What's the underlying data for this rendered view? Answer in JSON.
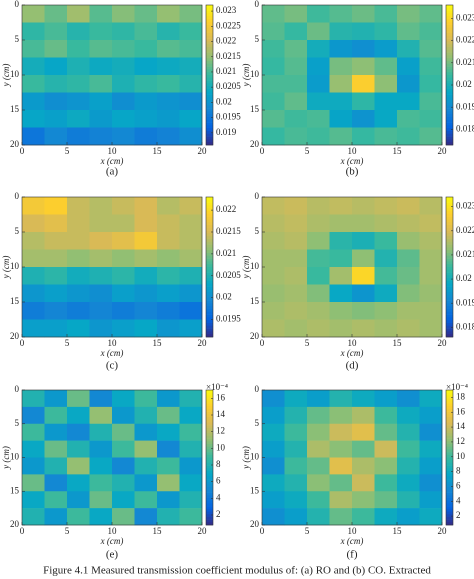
{
  "caption": "Figure 4.1 Measured transmission coefficient modulus of: (a) RO and (b) CO. Extracted",
  "chart_data": [
    {
      "type": "heatmap",
      "label": "(a)",
      "xlabel": "x (cm)",
      "ylabel": "y (cm)",
      "xlim": [
        0,
        20
      ],
      "ylim": [
        20,
        0
      ],
      "xticks": [
        0,
        5,
        10,
        15,
        20
      ],
      "yticks": [
        0,
        5,
        10,
        15,
        20
      ],
      "clim": [
        0.0186,
        0.0232
      ],
      "cticks": [
        0.019,
        0.0195,
        0.02,
        0.0205,
        0.021,
        0.0215,
        0.022,
        0.0225,
        0.023
      ],
      "z": [
        [
          0.0215,
          0.0212,
          0.0216,
          0.0211,
          0.0214,
          0.0212,
          0.0215,
          0.0213
        ],
        [
          0.0208,
          0.021,
          0.0207,
          0.0209,
          0.0208,
          0.021,
          0.0207,
          0.0209
        ],
        [
          0.021,
          0.0212,
          0.0209,
          0.0211,
          0.021,
          0.0209,
          0.0211,
          0.021
        ],
        [
          0.0205,
          0.0203,
          0.0206,
          0.0204,
          0.0205,
          0.0203,
          0.0204,
          0.0205
        ],
        [
          0.0209,
          0.0207,
          0.0208,
          0.021,
          0.0206,
          0.0208,
          0.0209,
          0.0207
        ],
        [
          0.0201,
          0.0199,
          0.02,
          0.0202,
          0.0199,
          0.0201,
          0.02,
          0.0199
        ],
        [
          0.0203,
          0.0202,
          0.0204,
          0.0201,
          0.0203,
          0.0202,
          0.0201,
          0.0203
        ],
        [
          0.0195,
          0.0198,
          0.0196,
          0.0197,
          0.0198,
          0.0196,
          0.0197,
          0.0199
        ]
      ]
    },
    {
      "type": "heatmap",
      "label": "(b)",
      "xlabel": "x (cm)",
      "ylabel": "y (cm)",
      "xlim": [
        0,
        20
      ],
      "ylim": [
        20,
        0
      ],
      "xticks": [
        0,
        5,
        10,
        15,
        20
      ],
      "yticks": [
        0,
        5,
        10,
        15,
        20
      ],
      "clim": [
        0.0173,
        0.0236
      ],
      "cticks": [
        0.018,
        0.019,
        0.02,
        0.021,
        0.022,
        0.023
      ],
      "z": [
        [
          0.0208,
          0.021,
          0.0205,
          0.0207,
          0.0209,
          0.0206,
          0.021,
          0.0208
        ],
        [
          0.0207,
          0.0204,
          0.0209,
          0.0202,
          0.0201,
          0.0203,
          0.0208,
          0.0206
        ],
        [
          0.0205,
          0.0208,
          0.0199,
          0.0193,
          0.0191,
          0.0194,
          0.0201,
          0.0207
        ],
        [
          0.0204,
          0.0207,
          0.0195,
          0.021,
          0.0212,
          0.0208,
          0.0195,
          0.0205
        ],
        [
          0.0206,
          0.0206,
          0.0194,
          0.0213,
          0.0228,
          0.0212,
          0.0193,
          0.0204
        ],
        [
          0.0205,
          0.0208,
          0.0198,
          0.0198,
          0.0203,
          0.0197,
          0.0197,
          0.0206
        ],
        [
          0.0207,
          0.0205,
          0.0206,
          0.0196,
          0.0192,
          0.0197,
          0.0206,
          0.0205
        ],
        [
          0.0204,
          0.0206,
          0.0205,
          0.0207,
          0.0204,
          0.0206,
          0.0205,
          0.0207
        ]
      ]
    },
    {
      "type": "heatmap",
      "label": "(c)",
      "xlabel": "x (cm)",
      "ylabel": "y (cm)",
      "xlim": [
        0,
        20
      ],
      "ylim": [
        20,
        0
      ],
      "xticks": [
        0,
        5,
        10,
        15,
        20
      ],
      "yticks": [
        0,
        5,
        10,
        15,
        20
      ],
      "clim": [
        0.0191,
        0.0223
      ],
      "cticks": [
        0.0195,
        0.02,
        0.0205,
        0.021,
        0.0215,
        0.022
      ],
      "z": [
        [
          0.0218,
          0.0219,
          0.0214,
          0.0213,
          0.0214,
          0.0215,
          0.0213,
          0.0214
        ],
        [
          0.0215,
          0.0216,
          0.0214,
          0.0213,
          0.0213,
          0.0215,
          0.0214,
          0.0213
        ],
        [
          0.0213,
          0.0214,
          0.0214,
          0.0215,
          0.0216,
          0.0218,
          0.0214,
          0.0213
        ],
        [
          0.0212,
          0.0212,
          0.0211,
          0.0212,
          0.0211,
          0.0212,
          0.0211,
          0.0212
        ],
        [
          0.0205,
          0.0206,
          0.0204,
          0.0205,
          0.0206,
          0.0204,
          0.0206,
          0.0205
        ],
        [
          0.0201,
          0.0202,
          0.0201,
          0.02,
          0.0202,
          0.0201,
          0.0202,
          0.0201
        ],
        [
          0.0198,
          0.0199,
          0.0198,
          0.0199,
          0.0198,
          0.0199,
          0.0198,
          0.0197
        ],
        [
          0.0202,
          0.0202,
          0.0203,
          0.0201,
          0.0202,
          0.0203,
          0.0201,
          0.0202
        ]
      ]
    },
    {
      "type": "heatmap",
      "label": "(d)",
      "xlabel": "x (cm)",
      "ylabel": "y (cm)",
      "xlim": [
        0,
        20
      ],
      "ylim": [
        20,
        0
      ],
      "xticks": [
        0,
        5,
        10,
        15,
        20
      ],
      "yticks": [
        0,
        5,
        10,
        15,
        20
      ],
      "clim": [
        0.0176,
        0.0234
      ],
      "cticks": [
        0.018,
        0.019,
        0.02,
        0.021,
        0.022,
        0.023
      ],
      "z": [
        [
          0.0217,
          0.0218,
          0.0216,
          0.0217,
          0.0216,
          0.0217,
          0.0218,
          0.0216
        ],
        [
          0.0216,
          0.0217,
          0.0215,
          0.0214,
          0.0214,
          0.0215,
          0.0216,
          0.0217
        ],
        [
          0.0215,
          0.0216,
          0.0212,
          0.0203,
          0.0201,
          0.0205,
          0.0213,
          0.0215
        ],
        [
          0.0214,
          0.0214,
          0.0206,
          0.0205,
          0.0212,
          0.0202,
          0.0208,
          0.0214
        ],
        [
          0.0214,
          0.0215,
          0.0205,
          0.0214,
          0.0228,
          0.0206,
          0.0209,
          0.0214
        ],
        [
          0.0213,
          0.0214,
          0.0211,
          0.0198,
          0.0194,
          0.0199,
          0.0211,
          0.0213
        ],
        [
          0.0214,
          0.0215,
          0.0214,
          0.0212,
          0.0211,
          0.0212,
          0.0214,
          0.0214
        ],
        [
          0.0215,
          0.0214,
          0.0215,
          0.0214,
          0.0215,
          0.0214,
          0.0215,
          0.0214
        ]
      ]
    },
    {
      "type": "heatmap",
      "label": "(e)",
      "xlabel": "x (cm)",
      "ylabel": "y (cm)",
      "xlim": [
        0,
        20
      ],
      "ylim": [
        20,
        0
      ],
      "xticks": [
        0,
        5,
        10,
        15,
        20
      ],
      "yticks": [
        0,
        5,
        10,
        15,
        20
      ],
      "clim": [
        0.8,
        17
      ],
      "cticks": [
        2,
        4,
        6,
        8,
        10,
        12,
        14,
        16
      ],
      "colorbar_exponent": "×10⁻⁴",
      "z": [
        [
          8,
          6,
          10,
          5,
          7,
          9,
          6,
          8
        ],
        [
          5,
          9,
          7,
          11,
          6,
          8,
          10,
          7
        ],
        [
          9,
          6,
          5,
          8,
          10,
          6,
          7,
          9
        ],
        [
          7,
          10,
          8,
          6,
          9,
          11,
          5,
          8
        ],
        [
          6,
          8,
          11,
          7,
          5,
          8,
          9,
          6
        ],
        [
          10,
          5,
          7,
          9,
          8,
          6,
          11,
          7
        ],
        [
          7,
          9,
          6,
          10,
          7,
          9,
          6,
          8
        ],
        [
          8,
          6,
          9,
          7,
          10,
          5,
          8,
          9
        ]
      ]
    },
    {
      "type": "heatmap",
      "label": "(f)",
      "xlabel": "x (cm)",
      "ylabel": "y (cm)",
      "xlim": [
        0,
        20
      ],
      "ylim": [
        20,
        0
      ],
      "xticks": [
        0,
        5,
        10,
        15,
        20
      ],
      "yticks": [
        0,
        5,
        10,
        15,
        20
      ],
      "clim": [
        0.8,
        19
      ],
      "cticks": [
        2,
        4,
        6,
        8,
        10,
        12,
        14,
        16,
        18
      ],
      "colorbar_exponent": "×10⁻⁴",
      "z": [
        [
          6,
          8,
          7,
          9,
          8,
          7,
          6,
          8
        ],
        [
          7,
          9,
          11,
          12,
          13,
          10,
          8,
          7
        ],
        [
          8,
          10,
          12,
          14,
          15,
          11,
          9,
          6
        ],
        [
          7,
          9,
          13,
          12,
          11,
          14,
          10,
          8
        ],
        [
          6,
          10,
          11,
          15,
          13,
          12,
          9,
          7
        ],
        [
          8,
          9,
          12,
          11,
          14,
          10,
          8,
          6
        ],
        [
          7,
          8,
          10,
          13,
          12,
          11,
          9,
          7
        ],
        [
          6,
          7,
          9,
          11,
          10,
          8,
          7,
          8
        ]
      ]
    }
  ]
}
